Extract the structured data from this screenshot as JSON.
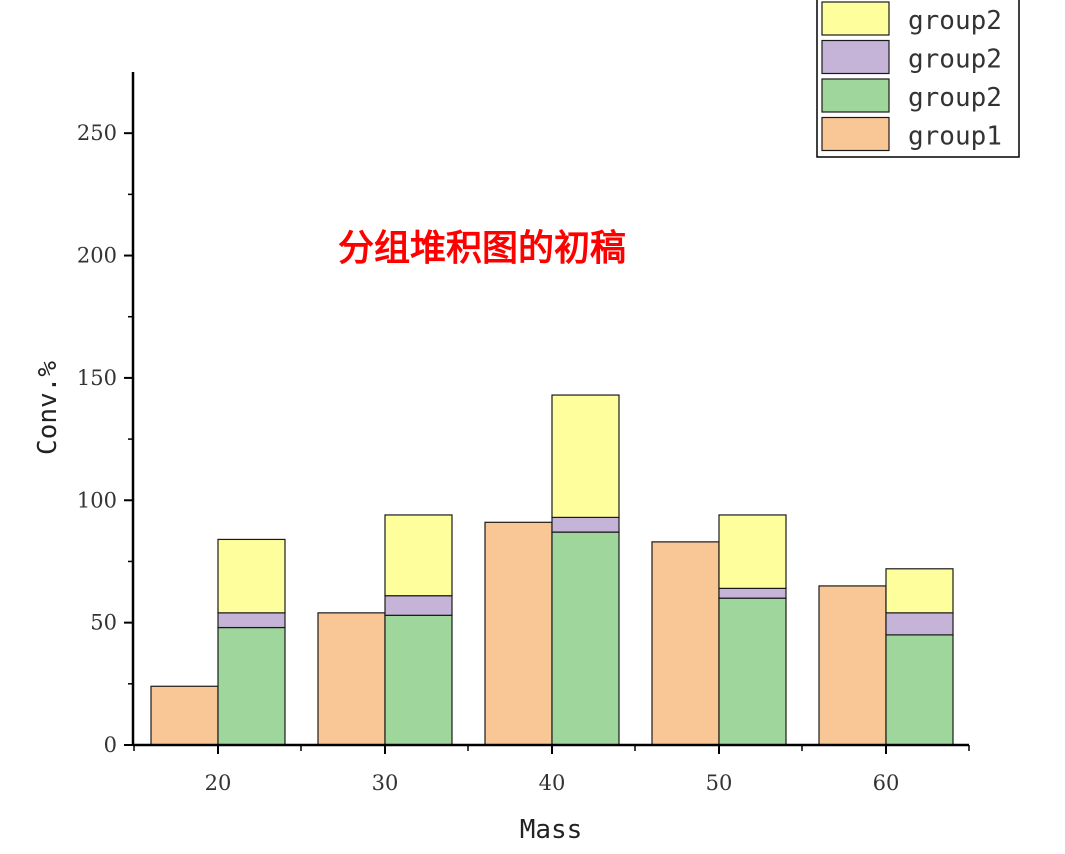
{
  "chart_data": {
    "type": "bar",
    "stacked": true,
    "grouped": true,
    "title": "",
    "annotation": "分组堆积图的初稿",
    "xlabel": "Mass",
    "ylabel": "Conv.%",
    "categories": [
      "20",
      "30",
      "40",
      "50",
      "60"
    ],
    "ylim": [
      0,
      275
    ],
    "yticks": [
      0,
      50,
      100,
      150,
      200,
      250
    ],
    "groups": [
      {
        "stack": "left",
        "series": [
          {
            "name": "group1",
            "color": "#f9c795",
            "values": [
              24,
              54,
              91,
              83,
              65
            ]
          }
        ]
      },
      {
        "stack": "right",
        "series": [
          {
            "name": "group2",
            "color": "#9fd69b",
            "values": [
              48,
              53,
              87,
              60,
              45
            ]
          },
          {
            "name": "group2",
            "color": "#c5b4d8",
            "values": [
              6,
              8,
              6,
              4,
              9
            ]
          },
          {
            "name": "group2",
            "color": "#fefe9c",
            "values": [
              30,
              33,
              50,
              30,
              18
            ]
          }
        ]
      }
    ],
    "legend": {
      "position": "top-right",
      "entries": [
        {
          "label": "group2",
          "color": "#fefe9c"
        },
        {
          "label": "group2",
          "color": "#c5b4d8"
        },
        {
          "label": "group2",
          "color": "#9fd69b"
        },
        {
          "label": "group1",
          "color": "#f9c795"
        }
      ]
    }
  }
}
